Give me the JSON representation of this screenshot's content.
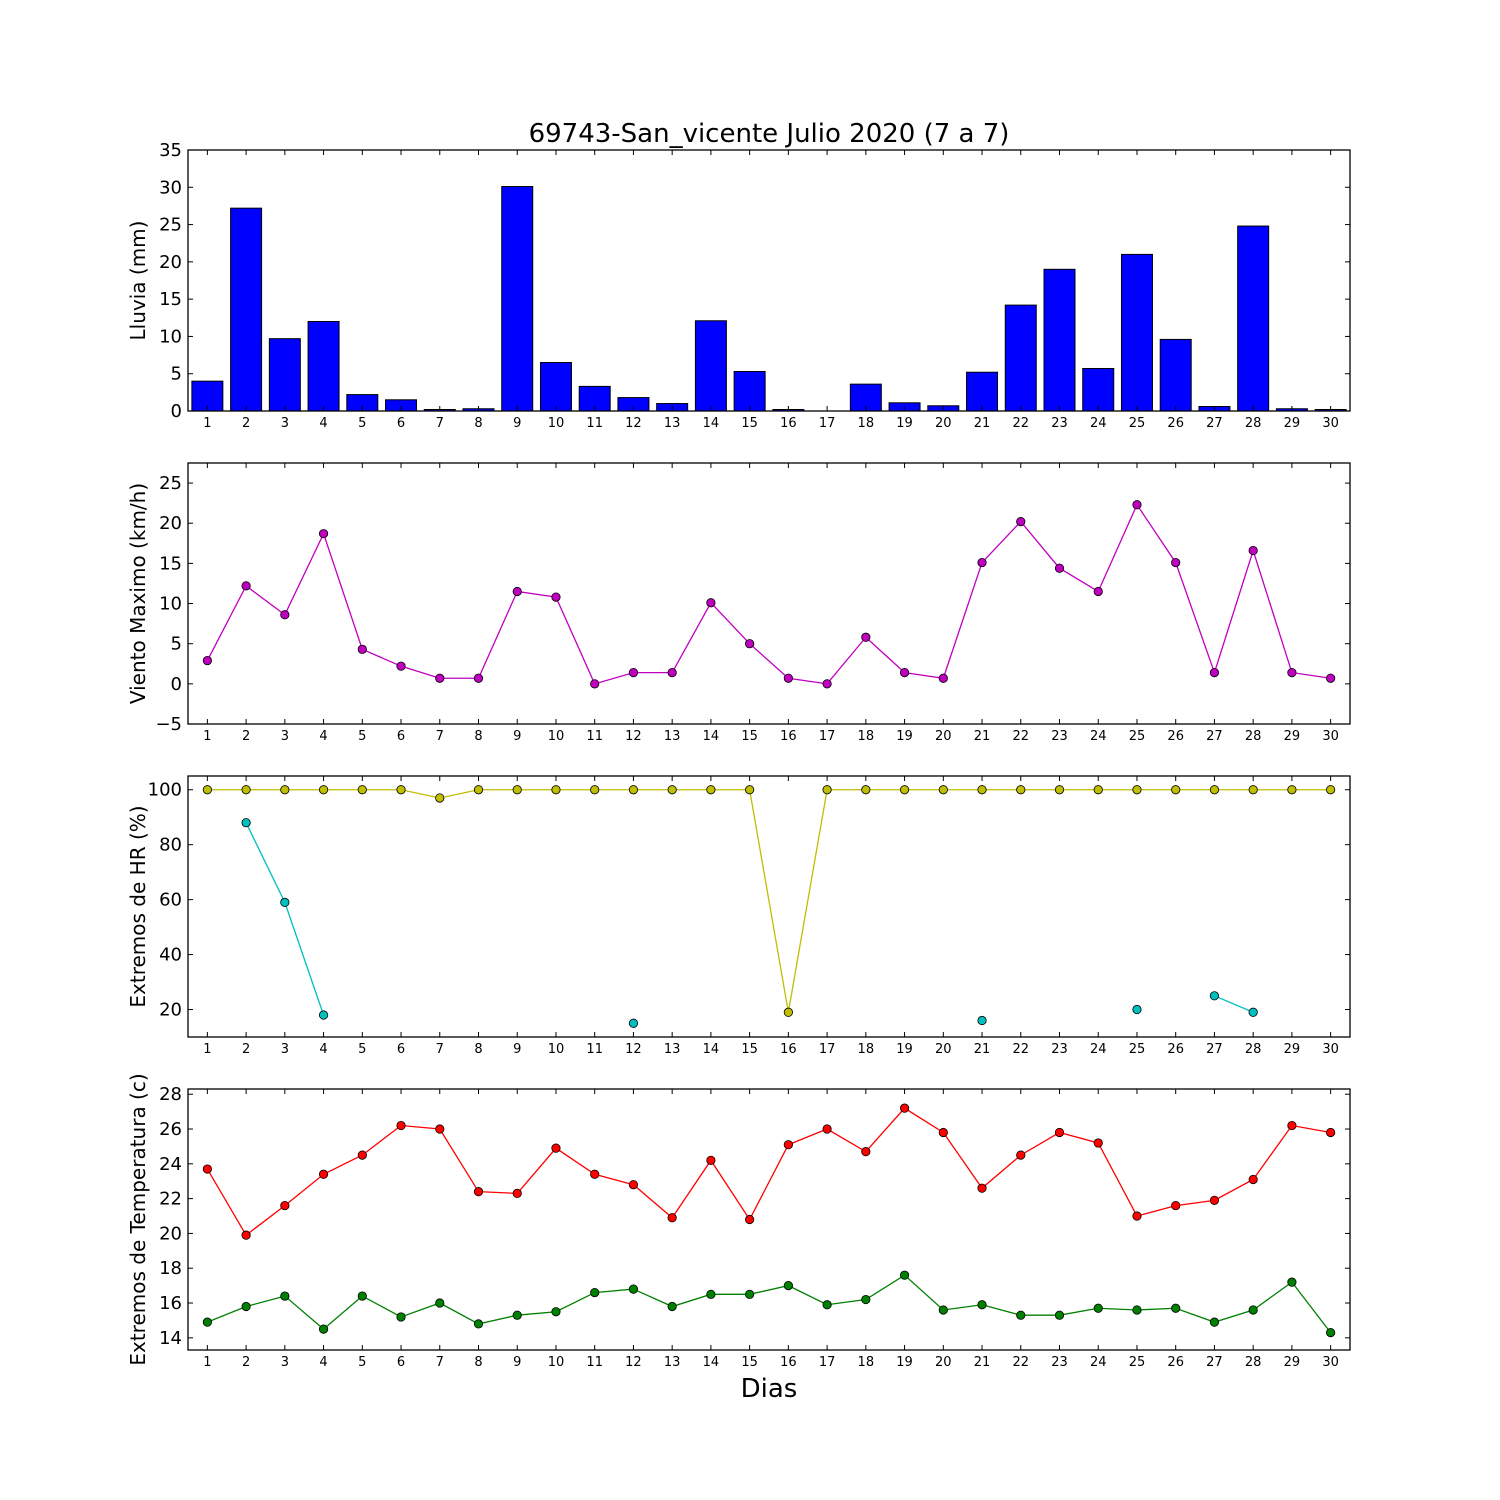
{
  "title": "69743-San_vicente Julio 2020  (7 a 7)",
  "xlabel": "Dias",
  "chart_data": [
    {
      "type": "bar",
      "ylabel": "Lluvia (mm)",
      "x": [
        1,
        2,
        3,
        4,
        5,
        6,
        7,
        8,
        9,
        10,
        11,
        12,
        13,
        14,
        15,
        16,
        17,
        18,
        19,
        20,
        21,
        22,
        23,
        24,
        25,
        26,
        27,
        28,
        29,
        30
      ],
      "values": [
        4.0,
        27.2,
        9.7,
        12.0,
        2.2,
        1.5,
        0.2,
        0.3,
        30.1,
        6.5,
        3.3,
        1.8,
        1.0,
        12.1,
        5.3,
        0.2,
        0.0,
        3.6,
        1.1,
        0.7,
        5.2,
        14.2,
        19.0,
        5.7,
        21.0,
        9.6,
        0.6,
        24.8,
        0.3,
        0.2
      ],
      "ylim": [
        0,
        35
      ],
      "yticks": [
        0,
        5,
        10,
        15,
        20,
        25,
        30,
        35
      ],
      "color": "#0000ff"
    },
    {
      "type": "line",
      "ylabel": "Viento Maximo (km/h)",
      "x": [
        1,
        2,
        3,
        4,
        5,
        6,
        7,
        8,
        9,
        10,
        11,
        12,
        13,
        14,
        15,
        16,
        17,
        18,
        19,
        20,
        21,
        22,
        23,
        24,
        25,
        26,
        27,
        28,
        29,
        30
      ],
      "series": [
        {
          "color": "#bf00bf",
          "values": [
            2.9,
            12.2,
            8.6,
            18.7,
            4.3,
            2.2,
            0.7,
            0.7,
            11.5,
            10.8,
            0.0,
            1.4,
            1.4,
            10.1,
            5.0,
            0.7,
            0.0,
            5.8,
            1.4,
            0.7,
            15.1,
            20.2,
            14.4,
            11.5,
            22.3,
            15.1,
            1.4,
            16.6,
            1.4,
            0.7
          ]
        }
      ],
      "ylim": [
        -5,
        27.5
      ],
      "yticks": [
        -5,
        0,
        5,
        10,
        15,
        20,
        25
      ]
    },
    {
      "type": "line",
      "ylabel": "Extremos de HR (%)",
      "x": [
        1,
        2,
        3,
        4,
        5,
        6,
        7,
        8,
        9,
        10,
        11,
        12,
        13,
        14,
        15,
        16,
        17,
        18,
        19,
        20,
        21,
        22,
        23,
        24,
        25,
        26,
        27,
        28,
        29,
        30
      ],
      "series": [
        {
          "color": "#bfbf00",
          "values": [
            100,
            100,
            100,
            100,
            100,
            100,
            97,
            100,
            100,
            100,
            100,
            100,
            100,
            100,
            100,
            19,
            100,
            100,
            100,
            100,
            100,
            100,
            100,
            100,
            100,
            100,
            100,
            100,
            100,
            100
          ]
        },
        {
          "color": "#00bfbf",
          "values": [
            null,
            88,
            59,
            18,
            null,
            null,
            null,
            null,
            null,
            null,
            null,
            15,
            null,
            null,
            null,
            null,
            null,
            null,
            null,
            null,
            16,
            null,
            null,
            null,
            20,
            null,
            25,
            19,
            null,
            null
          ]
        }
      ],
      "ylim": [
        10,
        105
      ],
      "yticks": [
        20,
        40,
        60,
        80,
        100
      ]
    },
    {
      "type": "line",
      "ylabel": "Extremos de Temperatura (c)",
      "x": [
        1,
        2,
        3,
        4,
        5,
        6,
        7,
        8,
        9,
        10,
        11,
        12,
        13,
        14,
        15,
        16,
        17,
        18,
        19,
        20,
        21,
        22,
        23,
        24,
        25,
        26,
        27,
        28,
        29,
        30
      ],
      "series": [
        {
          "color": "#ff0000",
          "values": [
            23.7,
            19.9,
            21.6,
            23.4,
            24.5,
            26.2,
            26.0,
            22.4,
            22.3,
            24.9,
            23.4,
            22.8,
            20.9,
            24.2,
            20.8,
            25.1,
            26.0,
            24.7,
            27.2,
            25.8,
            22.6,
            24.5,
            25.8,
            25.2,
            21.0,
            21.6,
            21.9,
            23.1,
            26.2,
            25.8
          ]
        },
        {
          "color": "#008000",
          "values": [
            14.9,
            15.8,
            16.4,
            14.5,
            16.4,
            15.2,
            16.0,
            14.8,
            15.3,
            15.5,
            16.6,
            16.8,
            15.8,
            16.5,
            16.5,
            17.0,
            15.9,
            16.2,
            17.6,
            15.6,
            15.9,
            15.3,
            15.3,
            15.7,
            15.6,
            15.7,
            14.9,
            15.6,
            17.2,
            14.3
          ]
        }
      ],
      "ylim": [
        13.3,
        28.3
      ],
      "yticks": [
        14,
        16,
        18,
        20,
        22,
        24,
        26,
        28
      ]
    }
  ]
}
